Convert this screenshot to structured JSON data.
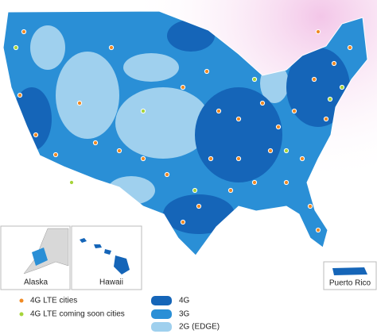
{
  "insets": [
    {
      "label": "Alaska"
    },
    {
      "label": "Hawaii"
    },
    {
      "label": "Puerto Rico"
    }
  ],
  "legend": {
    "cities": [
      "4G LTE cities",
      "4G LTE coming soon cities"
    ],
    "coverage": [
      "4G",
      "3G",
      "2G (EDGE)"
    ]
  }
}
